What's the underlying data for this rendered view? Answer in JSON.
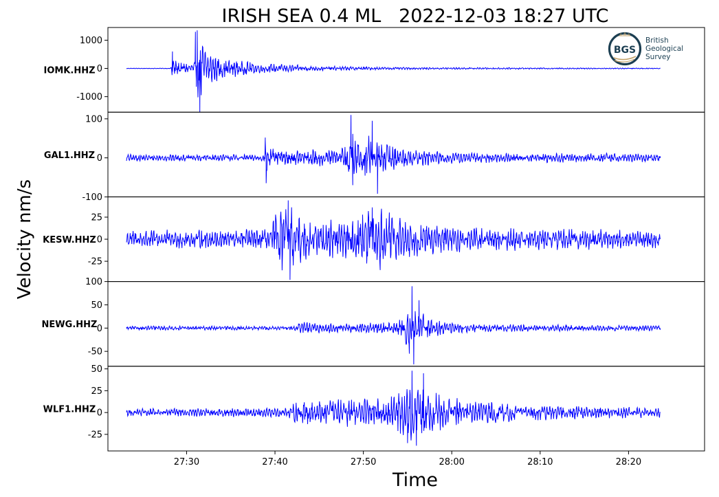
{
  "chart_data": {
    "type": "line",
    "title": "IRISH SEA 0.4 ML   2022-12-03 18:27 UTC",
    "xlabel": "Time",
    "ylabel": "Velocity nm/s",
    "x_ticks": [
      "27:30",
      "27:40",
      "27:50",
      "28:00",
      "28:10",
      "28:20"
    ],
    "x_tick_seconds": [
      30,
      40,
      50,
      60,
      70,
      80
    ],
    "x_range_seconds": [
      21.1,
      88.6
    ],
    "trace_seconds": [
      23.2,
      83.6
    ],
    "line_color": "#0000ff",
    "grid": false,
    "panels": [
      {
        "station": "IOMK.HHZ",
        "ylim": [
          -1550,
          1450
        ],
        "y_ticks": [
          1000,
          0,
          -1000
        ],
        "y_tick_labels": [
          "1000",
          "0",
          "-1000"
        ],
        "noise": 8,
        "envelope": [
          {
            "t": 23.2,
            "a": 8
          },
          {
            "t": 28.2,
            "a": 10
          },
          {
            "t": 28.4,
            "a": 380
          },
          {
            "t": 29.0,
            "a": 220
          },
          {
            "t": 30.3,
            "a": 170
          },
          {
            "t": 31.0,
            "a": 230
          },
          {
            "t": 31.3,
            "a": 1300
          },
          {
            "t": 32.2,
            "a": 650
          },
          {
            "t": 34.0,
            "a": 330
          },
          {
            "t": 38.0,
            "a": 170
          },
          {
            "t": 45.0,
            "a": 75
          },
          {
            "t": 55.0,
            "a": 35
          },
          {
            "t": 83.6,
            "a": 15
          }
        ],
        "spikes": [
          {
            "t": 28.4,
            "v": 600
          },
          {
            "t": 31.0,
            "v": 1300
          },
          {
            "t": 31.2,
            "v": 1350
          },
          {
            "t": 31.5,
            "v": -1550
          },
          {
            "t": 31.1,
            "v": -650
          }
        ]
      },
      {
        "station": "GAL1.HHZ",
        "ylim": [
          -100,
          117
        ],
        "y_ticks": [
          100,
          0,
          -100
        ],
        "y_tick_labels": [
          "100",
          "0",
          "-100"
        ],
        "noise": 6,
        "envelope": [
          {
            "t": 23.2,
            "a": 8
          },
          {
            "t": 38.8,
            "a": 8
          },
          {
            "t": 38.9,
            "a": 45
          },
          {
            "t": 40.0,
            "a": 18
          },
          {
            "t": 47.5,
            "a": 22
          },
          {
            "t": 48.4,
            "a": 75
          },
          {
            "t": 49.5,
            "a": 40
          },
          {
            "t": 50.5,
            "a": 65
          },
          {
            "t": 52.0,
            "a": 40
          },
          {
            "t": 55.0,
            "a": 20
          },
          {
            "t": 62.0,
            "a": 12
          },
          {
            "t": 83.6,
            "a": 10
          }
        ],
        "spikes": [
          {
            "t": 38.9,
            "v": 52
          },
          {
            "t": 39.0,
            "v": -65
          },
          {
            "t": 48.6,
            "v": 110
          },
          {
            "t": 51.0,
            "v": 95
          },
          {
            "t": 51.6,
            "v": -92
          },
          {
            "t": 48.8,
            "v": -70
          }
        ]
      },
      {
        "station": "KESW.HHZ",
        "ylim": [
          -48,
          48
        ],
        "y_ticks": [
          25,
          0,
          -25
        ],
        "y_tick_labels": [
          "25",
          "0",
          "-25"
        ],
        "noise": 9,
        "envelope": [
          {
            "t": 23.2,
            "a": 9
          },
          {
            "t": 39.5,
            "a": 11
          },
          {
            "t": 40.0,
            "a": 32
          },
          {
            "t": 41.5,
            "a": 36
          },
          {
            "t": 44.0,
            "a": 20
          },
          {
            "t": 48.0,
            "a": 20
          },
          {
            "t": 50.5,
            "a": 34
          },
          {
            "t": 52.0,
            "a": 30
          },
          {
            "t": 56.0,
            "a": 17
          },
          {
            "t": 62.0,
            "a": 12
          },
          {
            "t": 83.6,
            "a": 10
          }
        ],
        "spikes": [
          {
            "t": 41.5,
            "v": 44
          },
          {
            "t": 41.7,
            "v": -46
          },
          {
            "t": 51.0,
            "v": 36
          },
          {
            "t": 51.9,
            "v": -35
          }
        ]
      },
      {
        "station": "NEWG.HHZ",
        "ylim": [
          -82,
          100
        ],
        "y_ticks": [
          100,
          50,
          0,
          -50
        ],
        "y_tick_labels": [
          "100",
          "50",
          "0",
          "-50"
        ],
        "noise": 4,
        "envelope": [
          {
            "t": 23.2,
            "a": 4
          },
          {
            "t": 42.0,
            "a": 4
          },
          {
            "t": 42.5,
            "a": 12
          },
          {
            "t": 48.0,
            "a": 9
          },
          {
            "t": 53.5,
            "a": 12
          },
          {
            "t": 54.8,
            "a": 35
          },
          {
            "t": 56.0,
            "a": 38
          },
          {
            "t": 57.5,
            "a": 18
          },
          {
            "t": 62.0,
            "a": 8
          },
          {
            "t": 83.6,
            "a": 5
          }
        ],
        "spikes": [
          {
            "t": 55.5,
            "v": 90
          },
          {
            "t": 55.7,
            "v": -78
          },
          {
            "t": 56.3,
            "v": 60
          },
          {
            "t": 55.2,
            "v": -55
          }
        ]
      },
      {
        "station": "WLF1.HHZ",
        "ylim": [
          -44,
          53
        ],
        "y_ticks": [
          50,
          25,
          0,
          -25
        ],
        "y_tick_labels": [
          "50",
          "25",
          "0",
          "-25"
        ],
        "noise": 4,
        "envelope": [
          {
            "t": 23.2,
            "a": 4
          },
          {
            "t": 41.5,
            "a": 5
          },
          {
            "t": 42.5,
            "a": 13
          },
          {
            "t": 52.5,
            "a": 15
          },
          {
            "t": 54.5,
            "a": 26
          },
          {
            "t": 56.5,
            "a": 30
          },
          {
            "t": 59.0,
            "a": 18
          },
          {
            "t": 63.0,
            "a": 12
          },
          {
            "t": 70.0,
            "a": 8
          },
          {
            "t": 83.6,
            "a": 5
          }
        ],
        "spikes": [
          {
            "t": 55.5,
            "v": 48
          },
          {
            "t": 56.0,
            "v": -38
          },
          {
            "t": 56.8,
            "v": 45
          },
          {
            "t": 55.0,
            "v": -35
          }
        ]
      }
    ]
  },
  "logo": {
    "mark_text": "BGS",
    "name_lines": [
      "British",
      "Geological",
      "Survey"
    ],
    "ring_color": "#1c3f52",
    "accent_color": "#c5a46a"
  }
}
